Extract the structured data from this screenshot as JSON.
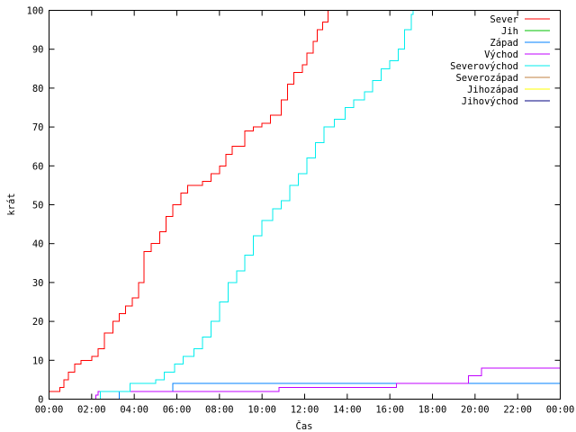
{
  "chart_data": {
    "type": "line",
    "title": "",
    "xlabel": "Čas",
    "ylabel": "krát",
    "xlim": [
      0,
      24
    ],
    "ylim": [
      0,
      100
    ],
    "x_ticks": [
      {
        "value": 0,
        "label": "00:00"
      },
      {
        "value": 2,
        "label": "02:00"
      },
      {
        "value": 4,
        "label": "04:00"
      },
      {
        "value": 6,
        "label": "06:00"
      },
      {
        "value": 8,
        "label": "08:00"
      },
      {
        "value": 10,
        "label": "10:00"
      },
      {
        "value": 12,
        "label": "12:00"
      },
      {
        "value": 14,
        "label": "14:00"
      },
      {
        "value": 16,
        "label": "16:00"
      },
      {
        "value": 18,
        "label": "18:00"
      },
      {
        "value": 20,
        "label": "20:00"
      },
      {
        "value": 22,
        "label": "22:00"
      },
      {
        "value": 24,
        "label": "00:00"
      }
    ],
    "y_ticks": [
      0,
      10,
      20,
      30,
      40,
      50,
      60,
      70,
      80,
      90,
      100
    ],
    "grid": false,
    "legend_position": "top-right",
    "series": [
      {
        "name": "Sever",
        "color": "#ff0000",
        "points": [
          [
            0,
            2
          ],
          [
            0.5,
            3
          ],
          [
            0.7,
            5
          ],
          [
            0.9,
            7
          ],
          [
            1.2,
            9
          ],
          [
            1.5,
            10
          ],
          [
            2.0,
            11
          ],
          [
            2.3,
            13
          ],
          [
            2.6,
            17
          ],
          [
            3.0,
            20
          ],
          [
            3.3,
            22
          ],
          [
            3.6,
            24
          ],
          [
            3.9,
            26
          ],
          [
            4.2,
            30
          ],
          [
            4.45,
            38
          ],
          [
            4.8,
            40
          ],
          [
            5.2,
            43
          ],
          [
            5.5,
            47
          ],
          [
            5.8,
            50
          ],
          [
            6.2,
            53
          ],
          [
            6.5,
            55
          ],
          [
            7.2,
            56
          ],
          [
            7.6,
            58
          ],
          [
            8.0,
            60
          ],
          [
            8.3,
            63
          ],
          [
            8.6,
            65
          ],
          [
            9.2,
            69
          ],
          [
            9.6,
            70
          ],
          [
            10.0,
            71
          ],
          [
            10.4,
            73
          ],
          [
            10.9,
            77
          ],
          [
            11.2,
            81
          ],
          [
            11.5,
            84
          ],
          [
            11.9,
            86
          ],
          [
            12.1,
            89
          ],
          [
            12.4,
            92
          ],
          [
            12.6,
            95
          ],
          [
            12.85,
            97
          ],
          [
            13.1,
            100
          ]
        ]
      },
      {
        "name": "Jih",
        "color": "#00c000",
        "points": []
      },
      {
        "name": "Západ",
        "color": "#0080ff",
        "points": [
          [
            3.3,
            0
          ],
          [
            3.3,
            2
          ],
          [
            5.8,
            2
          ],
          [
            5.8,
            4
          ],
          [
            24,
            4
          ]
        ]
      },
      {
        "name": "Východ",
        "color": "#c000ff",
        "points": [
          [
            2.2,
            0
          ],
          [
            2.2,
            1
          ],
          [
            2.3,
            1
          ],
          [
            2.3,
            2
          ],
          [
            10.8,
            2
          ],
          [
            10.8,
            3
          ],
          [
            16.3,
            3
          ],
          [
            16.3,
            4
          ],
          [
            19.7,
            4
          ],
          [
            19.7,
            6
          ],
          [
            20.3,
            6
          ],
          [
            20.3,
            8
          ],
          [
            24,
            8
          ]
        ]
      },
      {
        "name": "Severovýchod",
        "color": "#00eeee",
        "points": [
          [
            2.4,
            0
          ],
          [
            2.4,
            2
          ],
          [
            3.3,
            2
          ],
          [
            3.8,
            4
          ],
          [
            5.0,
            5
          ],
          [
            5.4,
            7
          ],
          [
            5.9,
            9
          ],
          [
            6.3,
            11
          ],
          [
            6.8,
            13
          ],
          [
            7.2,
            16
          ],
          [
            7.6,
            20
          ],
          [
            8.0,
            25
          ],
          [
            8.4,
            30
          ],
          [
            8.8,
            33
          ],
          [
            9.2,
            37
          ],
          [
            9.6,
            42
          ],
          [
            10.0,
            46
          ],
          [
            10.5,
            49
          ],
          [
            10.9,
            51
          ],
          [
            11.3,
            55
          ],
          [
            11.7,
            58
          ],
          [
            12.1,
            62
          ],
          [
            12.5,
            66
          ],
          [
            12.9,
            70
          ],
          [
            13.4,
            72
          ],
          [
            13.9,
            75
          ],
          [
            14.3,
            77
          ],
          [
            14.8,
            79
          ],
          [
            15.2,
            82
          ],
          [
            15.6,
            85
          ],
          [
            16.0,
            87
          ],
          [
            16.4,
            90
          ],
          [
            16.7,
            95
          ],
          [
            17.0,
            99
          ],
          [
            17.1,
            100
          ]
        ]
      },
      {
        "name": "Severozápad",
        "color": "#c08040",
        "points": []
      },
      {
        "name": "Jihozápad",
        "color": "#ffff00",
        "points": []
      },
      {
        "name": "Jihovýchod",
        "color": "#000080",
        "points": []
      }
    ]
  }
}
